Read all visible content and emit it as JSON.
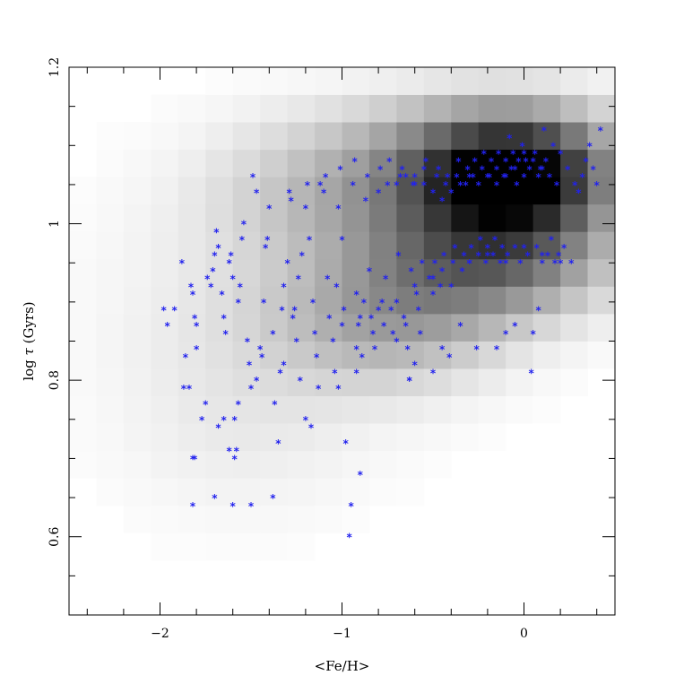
{
  "chart_data": {
    "type": "scatter",
    "title": "",
    "xlabel": "<Fe/H>",
    "ylabel_parts": {
      "before": "log ",
      "symbol": "τ",
      "after": " (Gyrs)"
    },
    "xlim": [
      -2.5,
      0.5
    ],
    "ylim": [
      0.5,
      1.2
    ],
    "x_ticks": [
      {
        "value": -2,
        "label": "−2"
      },
      {
        "value": -1,
        "label": "−1"
      },
      {
        "value": 0,
        "label": "0"
      }
    ],
    "y_ticks": [
      {
        "value": 0.6,
        "label": "0.6"
      },
      {
        "value": 0.8,
        "label": "0.8"
      },
      {
        "value": 1.0,
        "label": "1"
      },
      {
        "value": 1.2,
        "label": "1.2"
      }
    ],
    "grid": false,
    "marker_symbol": "*",
    "marker_color": "#2222ee",
    "density_map": {
      "description_colors": [
        "#ffffff",
        "#000000"
      ],
      "x_bin_size": 0.15,
      "y_bin_size": 0.035,
      "blobs": [
        {
          "cx": -0.05,
          "cy": 1.06,
          "sx": 0.38,
          "sy": 0.055,
          "w": 1.0
        },
        {
          "cx": -0.15,
          "cy": 0.95,
          "sx": 0.45,
          "sy": 0.05,
          "w": 0.45
        },
        {
          "cx": -0.7,
          "cy": 0.88,
          "sx": 0.45,
          "sy": 0.06,
          "w": 0.3
        },
        {
          "cx": -0.8,
          "cy": 1.04,
          "sx": 0.55,
          "sy": 0.06,
          "w": 0.3
        },
        {
          "cx": -1.4,
          "cy": 0.88,
          "sx": 0.6,
          "sy": 0.12,
          "w": 0.1
        },
        {
          "cx": -1.6,
          "cy": 0.72,
          "sx": 0.45,
          "sy": 0.08,
          "w": 0.04
        },
        {
          "cx": -0.4,
          "cy": 1.12,
          "sx": 0.6,
          "sy": 0.04,
          "w": 0.12
        }
      ]
    },
    "points": [
      [
        -1.98,
        0.89
      ],
      [
        -1.96,
        0.87
      ],
      [
        -1.92,
        0.89
      ],
      [
        -1.88,
        0.95
      ],
      [
        -1.86,
        0.83
      ],
      [
        -1.84,
        0.79
      ],
      [
        -1.83,
        0.92
      ],
      [
        -1.82,
        0.91
      ],
      [
        -1.81,
        0.88
      ],
      [
        -1.8,
        0.87
      ],
      [
        -1.8,
        0.84
      ],
      [
        -1.77,
        0.75
      ],
      [
        -1.75,
        0.77
      ],
      [
        -1.74,
        0.93
      ],
      [
        -1.72,
        0.92
      ],
      [
        -1.71,
        0.94
      ],
      [
        -1.7,
        0.96
      ],
      [
        -1.69,
        0.99
      ],
      [
        -1.68,
        0.97
      ],
      [
        -1.66,
        0.91
      ],
      [
        -1.65,
        0.88
      ],
      [
        -1.64,
        0.86
      ],
      [
        -1.62,
        0.95
      ],
      [
        -1.61,
        0.96
      ],
      [
        -1.6,
        0.93
      ],
      [
        -1.59,
        0.75
      ],
      [
        -1.58,
        0.71
      ],
      [
        -1.57,
        0.9
      ],
      [
        -1.56,
        0.92
      ],
      [
        -1.55,
        0.98
      ],
      [
        -1.54,
        1.0
      ],
      [
        -1.52,
        0.85
      ],
      [
        -1.51,
        0.82
      ],
      [
        -1.5,
        0.79
      ],
      [
        -1.49,
        1.06
      ],
      [
        -1.47,
        1.04
      ],
      [
        -1.45,
        0.84
      ],
      [
        -1.44,
        0.83
      ],
      [
        -1.43,
        0.9
      ],
      [
        -1.42,
        0.97
      ],
      [
        -1.41,
        0.98
      ],
      [
        -1.4,
        1.02
      ],
      [
        -1.38,
        0.86
      ],
      [
        -1.37,
        0.77
      ],
      [
        -1.35,
        0.72
      ],
      [
        -1.34,
        0.81
      ],
      [
        -1.33,
        0.89
      ],
      [
        -1.32,
        0.92
      ],
      [
        -1.3,
        0.95
      ],
      [
        -1.29,
        1.04
      ],
      [
        -1.28,
        1.03
      ],
      [
        -1.27,
        0.88
      ],
      [
        -1.25,
        0.85
      ],
      [
        -1.24,
        0.93
      ],
      [
        -1.22,
        0.96
      ],
      [
        -1.2,
        1.02
      ],
      [
        -1.19,
        1.05
      ],
      [
        -1.18,
        0.98
      ],
      [
        -1.16,
        0.9
      ],
      [
        -1.15,
        0.86
      ],
      [
        -1.14,
        0.83
      ],
      [
        -1.13,
        0.79
      ],
      [
        -1.12,
        1.05
      ],
      [
        -1.1,
        1.04
      ],
      [
        -1.09,
        1.06
      ],
      [
        -1.08,
        0.93
      ],
      [
        -1.07,
        0.88
      ],
      [
        -1.05,
        0.85
      ],
      [
        -1.04,
        0.81
      ],
      [
        -1.03,
        0.92
      ],
      [
        -1.02,
        1.02
      ],
      [
        -1.01,
        1.07
      ],
      [
        -1.0,
        0.98
      ],
      [
        -0.99,
        0.89
      ],
      [
        -0.98,
        0.72
      ],
      [
        -0.96,
        0.6
      ],
      [
        -0.95,
        0.64
      ],
      [
        -0.94,
        1.05
      ],
      [
        -0.93,
        1.08
      ],
      [
        -0.92,
        0.91
      ],
      [
        -0.91,
        0.87
      ],
      [
        -0.9,
        0.68
      ],
      [
        -0.89,
        0.83
      ],
      [
        -0.88,
        0.9
      ],
      [
        -0.87,
        1.03
      ],
      [
        -0.86,
        1.06
      ],
      [
        -0.85,
        0.94
      ],
      [
        -0.84,
        0.88
      ],
      [
        -0.83,
        0.86
      ],
      [
        -0.82,
        0.84
      ],
      [
        -0.8,
        1.04
      ],
      [
        -0.79,
        1.07
      ],
      [
        -0.78,
        0.9
      ],
      [
        -0.77,
        0.87
      ],
      [
        -0.76,
        0.93
      ],
      [
        -0.75,
        1.05
      ],
      [
        -0.74,
        1.08
      ],
      [
        -0.73,
        0.89
      ],
      [
        -0.72,
        0.86
      ],
      [
        -0.7,
        0.85
      ],
      [
        -0.69,
        0.96
      ],
      [
        -0.68,
        1.06
      ],
      [
        -0.67,
        1.07
      ],
      [
        -0.66,
        0.88
      ],
      [
        -0.65,
        0.87
      ],
      [
        -0.64,
        0.84
      ],
      [
        -0.63,
        0.8
      ],
      [
        -0.62,
        0.94
      ],
      [
        -0.61,
        1.05
      ],
      [
        -0.6,
        1.06
      ],
      [
        -0.59,
        0.91
      ],
      [
        -0.58,
        0.89
      ],
      [
        -0.57,
        0.86
      ],
      [
        -0.56,
        0.95
      ],
      [
        -0.55,
        1.07
      ],
      [
        -0.54,
        1.08
      ],
      [
        -0.52,
        0.93
      ],
      [
        -0.5,
        0.91
      ],
      [
        -0.49,
        0.95
      ],
      [
        -0.48,
        1.06
      ],
      [
        -0.47,
        1.07
      ],
      [
        -0.46,
        0.92
      ],
      [
        -0.45,
        0.94
      ],
      [
        -0.44,
        0.96
      ],
      [
        -0.43,
        1.05
      ],
      [
        -0.42,
        1.06
      ],
      [
        -0.41,
        0.83
      ],
      [
        -0.4,
        0.92
      ],
      [
        -0.39,
        0.95
      ],
      [
        -0.38,
        0.97
      ],
      [
        -0.37,
        1.06
      ],
      [
        -0.36,
        1.08
      ],
      [
        -0.35,
        0.87
      ],
      [
        -0.34,
        0.94
      ],
      [
        -0.33,
        0.96
      ],
      [
        -0.32,
        1.05
      ],
      [
        -0.31,
        1.07
      ],
      [
        -0.3,
        0.95
      ],
      [
        -0.29,
        0.97
      ],
      [
        -0.28,
        1.06
      ],
      [
        -0.27,
        1.08
      ],
      [
        -0.26,
        0.84
      ],
      [
        -0.25,
        0.96
      ],
      [
        -0.24,
        0.98
      ],
      [
        -0.23,
        1.07
      ],
      [
        -0.22,
        1.09
      ],
      [
        -0.21,
        0.95
      ],
      [
        -0.2,
        0.97
      ],
      [
        -0.19,
        1.06
      ],
      [
        -0.18,
        1.08
      ],
      [
        -0.17,
        0.96
      ],
      [
        -0.16,
        0.98
      ],
      [
        -0.15,
        1.07
      ],
      [
        -0.14,
        1.09
      ],
      [
        -0.13,
        0.95
      ],
      [
        -0.12,
        0.97
      ],
      [
        -0.11,
        1.06
      ],
      [
        -0.1,
        1.08
      ],
      [
        -0.09,
        0.96
      ],
      [
        -0.08,
        1.11
      ],
      [
        -0.07,
        1.07
      ],
      [
        -0.06,
        1.09
      ],
      [
        -0.05,
        0.97
      ],
      [
        -0.04,
        1.05
      ],
      [
        -0.03,
        1.08
      ],
      [
        -0.02,
        0.95
      ],
      [
        -0.01,
        1.1
      ],
      [
        0.0,
        1.06
      ],
      [
        0.01,
        1.08
      ],
      [
        0.02,
        0.96
      ],
      [
        0.03,
        1.07
      ],
      [
        0.04,
        0.81
      ],
      [
        0.05,
        0.86
      ],
      [
        0.06,
        1.09
      ],
      [
        0.07,
        0.97
      ],
      [
        0.08,
        1.06
      ],
      [
        0.09,
        1.07
      ],
      [
        0.1,
        0.95
      ],
      [
        0.11,
        1.12
      ],
      [
        0.12,
        1.08
      ],
      [
        0.13,
        0.96
      ],
      [
        0.14,
        1.06
      ],
      [
        0.15,
        0.98
      ],
      [
        0.16,
        1.1
      ],
      [
        0.17,
        0.95
      ],
      [
        0.18,
        1.05
      ],
      [
        0.19,
        0.96
      ],
      [
        0.2,
        1.09
      ],
      [
        0.22,
        0.97
      ],
      [
        0.24,
        1.07
      ],
      [
        0.26,
        0.95
      ],
      [
        0.28,
        1.05
      ],
      [
        0.3,
        1.04
      ],
      [
        0.32,
        1.06
      ],
      [
        0.34,
        1.08
      ],
      [
        0.36,
        1.1
      ],
      [
        0.38,
        1.07
      ],
      [
        0.4,
        1.05
      ],
      [
        0.42,
        1.12
      ],
      [
        -0.3,
        1.06
      ],
      [
        -0.25,
        1.05
      ],
      [
        -0.2,
        1.06
      ],
      [
        -0.15,
        1.05
      ],
      [
        -0.1,
        1.06
      ],
      [
        -0.05,
        1.07
      ],
      [
        0.0,
        1.09
      ],
      [
        0.05,
        1.08
      ],
      [
        0.1,
        1.07
      ],
      [
        -0.35,
        1.05
      ],
      [
        -0.4,
        1.04
      ],
      [
        -0.45,
        1.03
      ],
      [
        -0.5,
        1.04
      ],
      [
        -0.55,
        1.05
      ],
      [
        -0.6,
        1.05
      ],
      [
        -0.65,
        1.06
      ],
      [
        -0.7,
        1.05
      ],
      [
        -0.3,
        0.95
      ],
      [
        -0.2,
        0.96
      ],
      [
        -0.1,
        0.95
      ],
      [
        0.0,
        0.97
      ],
      [
        0.1,
        0.96
      ],
      [
        0.2,
        0.95
      ],
      [
        -0.5,
        0.93
      ],
      [
        -0.6,
        0.92
      ],
      [
        -0.7,
        0.9
      ],
      [
        -0.8,
        0.89
      ],
      [
        -0.9,
        0.88
      ],
      [
        -1.0,
        0.87
      ],
      [
        -1.6,
        0.64
      ],
      [
        -1.82,
        0.64
      ],
      [
        -1.7,
        0.65
      ],
      [
        -1.5,
        0.64
      ],
      [
        -1.38,
        0.65
      ],
      [
        -1.81,
        0.7
      ],
      [
        -1.82,
        0.7
      ],
      [
        -1.62,
        0.71
      ],
      [
        -1.59,
        0.7
      ],
      [
        -1.2,
        0.75
      ],
      [
        -1.17,
        0.74
      ],
      [
        -1.68,
        0.74
      ],
      [
        -1.65,
        0.75
      ],
      [
        -1.57,
        0.77
      ],
      [
        -1.87,
        0.79
      ],
      [
        -1.47,
        0.8
      ],
      [
        -1.32,
        0.82
      ],
      [
        -1.23,
        0.8
      ],
      [
        -1.02,
        0.79
      ],
      [
        -0.92,
        0.81
      ],
      [
        -0.6,
        0.82
      ],
      [
        -0.5,
        0.81
      ],
      [
        -0.63,
        0.8
      ],
      [
        -0.15,
        0.84
      ],
      [
        -0.1,
        0.86
      ],
      [
        -0.05,
        0.87
      ],
      [
        0.08,
        0.89
      ],
      [
        -0.45,
        0.84
      ],
      [
        -0.92,
        0.84
      ],
      [
        -1.26,
        0.89
      ]
    ]
  }
}
